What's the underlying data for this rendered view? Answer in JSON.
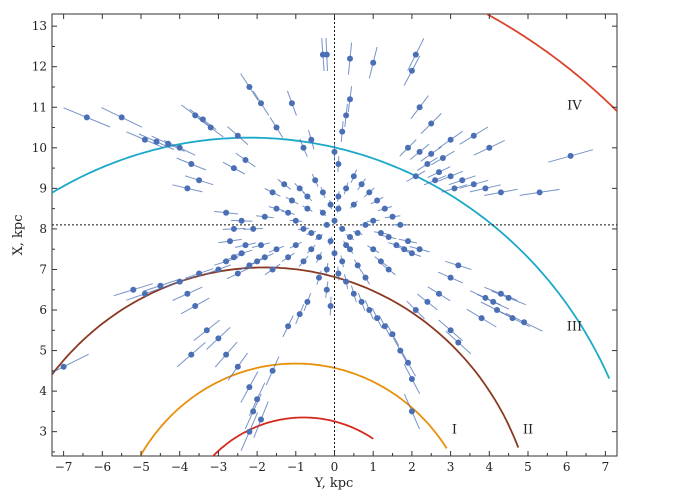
{
  "chart_data": {
    "type": "scatter",
    "title": "",
    "xlabel": "Y, kpc",
    "ylabel": "X, kpc",
    "xlim": [
      -7.3,
      7.3
    ],
    "ylim": [
      2.4,
      13.3
    ],
    "xticks": [
      "-7",
      "-6",
      "-5",
      "-4",
      "-3",
      "-2",
      "-1",
      "0",
      "1",
      "2",
      "3",
      "4",
      "5",
      "6",
      "7"
    ],
    "yticks": [
      "3",
      "4",
      "5",
      "6",
      "7",
      "8",
      "9",
      "10",
      "11",
      "12",
      "13"
    ],
    "sun_position": {
      "y": 0,
      "x": 8.1
    },
    "grid": false,
    "colors": {
      "points": "#4a6fb5",
      "arm_I": "#d42a1c",
      "arm_II": "#e8900c",
      "arm_III": "#8b3a22",
      "arm_IV": "#1aa9c9",
      "arm_V": "#d9442c"
    },
    "arcs": [
      {
        "label": "",
        "center_y": -0.8,
        "center_x": 0,
        "radius": 3.35,
        "from_y": -3.2,
        "to_y": 1.0,
        "color": "#d42a1c"
      },
      {
        "label": "I",
        "center_y": -1.0,
        "center_x": 0,
        "radius": 4.68,
        "from_y": -5.5,
        "to_y": 2.9,
        "color": "#e8900c"
      },
      {
        "label": "II",
        "center_y": -1.8,
        "center_x": 0,
        "radius": 7.05,
        "from_y": -7.3,
        "to_y": 4.75,
        "color": "#8b3a22"
      },
      {
        "label": "III",
        "center_y": -2.2,
        "center_x": 0,
        "radius": 10.25,
        "from_y": -7.3,
        "to_y": 7.1,
        "color": "#1aa9c9"
      },
      {
        "label": "IV",
        "center_y": -3.0,
        "center_x": 0,
        "radius": 15.0,
        "from_y": 1.1,
        "to_y": 7.3,
        "color": "#d9442c"
      }
    ],
    "arm_labels": [
      {
        "text": "I",
        "y": 3.1,
        "x": 2.95
      },
      {
        "text": "II",
        "y": 5.0,
        "x": 2.95
      },
      {
        "text": "III",
        "y": 6.2,
        "x": 5.5
      },
      {
        "text": "IV",
        "y": 6.2,
        "x": 10.95
      }
    ],
    "series": [
      {
        "points": [
          [
            -6.4,
            10.75
          ],
          [
            -5.5,
            10.75
          ],
          [
            -4.9,
            10.2
          ],
          [
            -4.6,
            10.15
          ],
          [
            -4.3,
            10.1
          ],
          [
            -4.0,
            10.0
          ],
          [
            -3.6,
            10.8
          ],
          [
            -3.4,
            10.7
          ],
          [
            -3.2,
            10.5
          ],
          [
            -3.7,
            9.6
          ],
          [
            -3.5,
            9.2
          ],
          [
            -3.8,
            9.0
          ],
          [
            -2.5,
            10.3
          ],
          [
            -2.3,
            9.7
          ],
          [
            -2.6,
            9.5
          ],
          [
            -2.2,
            11.5
          ],
          [
            -1.9,
            11.1
          ],
          [
            -1.5,
            10.5
          ],
          [
            -1.1,
            11.1
          ],
          [
            -0.8,
            10.0
          ],
          [
            -0.6,
            10.2
          ],
          [
            -0.3,
            12.3
          ],
          [
            -0.2,
            12.3
          ],
          [
            0.4,
            12.2
          ],
          [
            1.0,
            12.1
          ],
          [
            0.4,
            11.2
          ],
          [
            0.3,
            10.8
          ],
          [
            0.2,
            10.4
          ],
          [
            0.0,
            9.9
          ],
          [
            0.1,
            9.6
          ],
          [
            2.1,
            12.3
          ],
          [
            2.0,
            11.9
          ],
          [
            2.2,
            11.0
          ],
          [
            2.5,
            10.6
          ],
          [
            3.0,
            10.2
          ],
          [
            3.6,
            10.3
          ],
          [
            4.0,
            10.0
          ],
          [
            1.9,
            10.0
          ],
          [
            2.2,
            9.9
          ],
          [
            2.5,
            9.85
          ],
          [
            2.8,
            9.75
          ],
          [
            2.4,
            9.6
          ],
          [
            2.7,
            9.4
          ],
          [
            3.0,
            9.3
          ],
          [
            3.3,
            9.2
          ],
          [
            3.6,
            9.1
          ],
          [
            3.9,
            9.0
          ],
          [
            4.3,
            8.9
          ],
          [
            3.1,
            9.0
          ],
          [
            2.6,
            9.2
          ],
          [
            2.1,
            9.3
          ],
          [
            6.1,
            9.8
          ],
          [
            5.3,
            8.9
          ],
          [
            -7.0,
            4.6
          ],
          [
            -5.2,
            6.5
          ],
          [
            -4.9,
            6.4
          ],
          [
            -4.5,
            6.6
          ],
          [
            -4.0,
            6.7
          ],
          [
            -3.5,
            6.9
          ],
          [
            -3.8,
            6.4
          ],
          [
            -3.6,
            6.1
          ],
          [
            -3.3,
            5.5
          ],
          [
            -3.0,
            5.3
          ],
          [
            -3.7,
            4.9
          ],
          [
            -2.8,
            4.9
          ],
          [
            -2.5,
            4.6
          ],
          [
            -2.2,
            4.1
          ],
          [
            -2.0,
            3.8
          ],
          [
            -2.1,
            3.5
          ],
          [
            -1.9,
            3.3
          ],
          [
            -2.2,
            3.0
          ],
          [
            -1.6,
            4.5
          ],
          [
            -1.2,
            5.6
          ],
          [
            -0.9,
            5.9
          ],
          [
            -0.7,
            6.2
          ],
          [
            -0.4,
            6.8
          ],
          [
            -0.2,
            6.5
          ],
          [
            -0.1,
            6.1
          ],
          [
            0.1,
            6.9
          ],
          [
            0.3,
            6.7
          ],
          [
            0.5,
            6.4
          ],
          [
            0.7,
            6.2
          ],
          [
            0.9,
            6.0
          ],
          [
            1.1,
            5.8
          ],
          [
            1.3,
            5.6
          ],
          [
            1.5,
            5.4
          ],
          [
            1.7,
            5.0
          ],
          [
            1.9,
            4.7
          ],
          [
            2.0,
            4.3
          ],
          [
            2.0,
            3.5
          ],
          [
            2.1,
            6.0
          ],
          [
            2.4,
            6.2
          ],
          [
            2.7,
            6.4
          ],
          [
            3.0,
            6.8
          ],
          [
            3.2,
            7.1
          ],
          [
            3.0,
            5.5
          ],
          [
            3.2,
            5.2
          ],
          [
            3.8,
            5.8
          ],
          [
            4.2,
            6.0
          ],
          [
            4.6,
            5.8
          ],
          [
            4.9,
            5.7
          ],
          [
            3.9,
            6.3
          ],
          [
            4.1,
            6.2
          ],
          [
            4.3,
            6.4
          ],
          [
            4.5,
            6.3
          ],
          [
            -3.0,
            7.0
          ],
          [
            -2.8,
            7.2
          ],
          [
            -2.6,
            7.3
          ],
          [
            -2.4,
            7.4
          ],
          [
            -2.2,
            7.1
          ],
          [
            -2.0,
            7.2
          ],
          [
            -1.8,
            7.3
          ],
          [
            -1.6,
            7.0
          ],
          [
            -2.5,
            6.9
          ],
          [
            -2.3,
            7.6
          ],
          [
            -1.9,
            7.6
          ],
          [
            -1.5,
            7.5
          ],
          [
            -2.7,
            7.7
          ],
          [
            -2.1,
            8.0
          ],
          [
            -1.8,
            8.3
          ],
          [
            -1.5,
            8.5
          ],
          [
            -1.2,
            8.4
          ],
          [
            -1.0,
            8.2
          ],
          [
            -0.8,
            8.0
          ],
          [
            -0.6,
            7.9
          ],
          [
            -0.4,
            7.8
          ],
          [
            -0.2,
            8.1
          ],
          [
            0.0,
            8.2
          ],
          [
            0.2,
            8.0
          ],
          [
            0.4,
            7.8
          ],
          [
            0.6,
            7.9
          ],
          [
            0.8,
            8.1
          ],
          [
            1.0,
            8.2
          ],
          [
            1.2,
            7.9
          ],
          [
            1.4,
            7.8
          ],
          [
            1.6,
            7.6
          ],
          [
            1.8,
            7.5
          ],
          [
            2.0,
            7.4
          ],
          [
            2.2,
            7.5
          ],
          [
            1.9,
            7.7
          ],
          [
            1.7,
            8.1
          ],
          [
            1.5,
            8.3
          ],
          [
            1.3,
            8.5
          ],
          [
            1.1,
            8.7
          ],
          [
            0.9,
            8.9
          ],
          [
            0.7,
            9.1
          ],
          [
            0.5,
            9.3
          ],
          [
            0.3,
            9.0
          ],
          [
            0.1,
            8.8
          ],
          [
            -0.1,
            8.6
          ],
          [
            -0.3,
            8.9
          ],
          [
            -0.5,
            9.2
          ],
          [
            -0.7,
            8.8
          ],
          [
            -0.9,
            9.0
          ],
          [
            -1.1,
            8.7
          ],
          [
            -1.3,
            9.1
          ],
          [
            -1.6,
            8.9
          ],
          [
            -2.4,
            8.2
          ],
          [
            -2.6,
            8.0
          ],
          [
            -2.8,
            8.4
          ],
          [
            -0.4,
            7.3
          ],
          [
            -0.2,
            7.0
          ],
          [
            0.0,
            7.4
          ],
          [
            0.2,
            7.2
          ],
          [
            0.4,
            7.5
          ],
          [
            0.6,
            7.1
          ],
          [
            -0.6,
            7.5
          ],
          [
            -0.8,
            7.2
          ],
          [
            -1.0,
            7.6
          ],
          [
            -1.2,
            7.3
          ],
          [
            1.0,
            7.5
          ],
          [
            1.2,
            7.2
          ],
          [
            1.4,
            7.0
          ],
          [
            0.8,
            6.8
          ],
          [
            -0.3,
            8.4
          ],
          [
            0.1,
            8.5
          ],
          [
            0.5,
            8.6
          ],
          [
            -0.7,
            8.5
          ],
          [
            0.3,
            7.6
          ],
          [
            -0.1,
            7.7
          ]
        ]
      }
    ]
  }
}
